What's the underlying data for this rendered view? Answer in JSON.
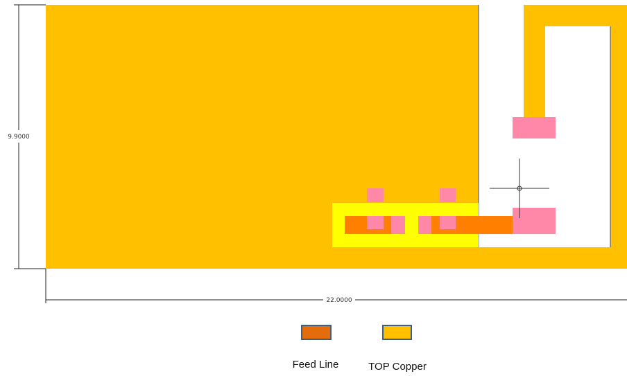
{
  "dimensions": {
    "height": "9.9000",
    "width": "22.0000"
  },
  "legend": [
    {
      "label": "Feed Line"
    },
    {
      "label": "TOP Copper"
    }
  ]
}
